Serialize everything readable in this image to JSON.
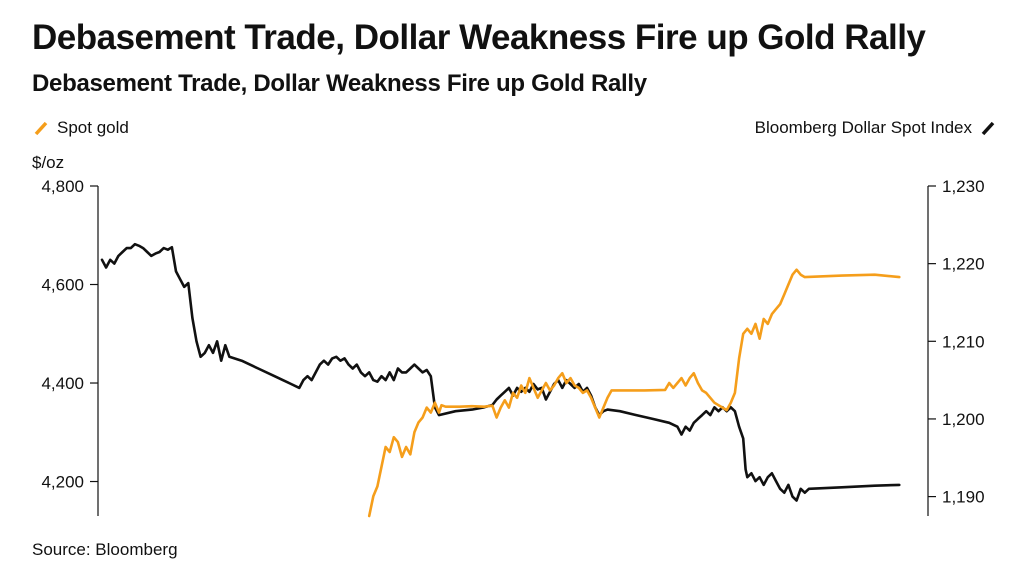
{
  "title": "Debasement Trade, Dollar Weakness Fire up Gold Rally",
  "subtitle": "Debasement Trade, Dollar Weakness Fire up Gold Rally",
  "source": "Source: Bloomberg",
  "chart_data": {
    "type": "line",
    "unit_label": "$/oz",
    "legend_placement": "top",
    "grid": false,
    "left_axis": {
      "range": [
        4130,
        4800
      ],
      "ticks": [
        4200,
        4400,
        4600,
        4800
      ],
      "tick_labels": [
        "4,200",
        "4,400",
        "4,600",
        "4,800"
      ]
    },
    "right_axis": {
      "range": [
        1187.5,
        1230
      ],
      "ticks": [
        1190,
        1200,
        1210,
        1220,
        1230
      ],
      "tick_labels": [
        "1,190",
        "1,200",
        "1,210",
        "1,220",
        "1,230"
      ]
    },
    "x_range": [
      0,
      100
    ],
    "series": [
      {
        "name": "Spot gold",
        "axis": "left",
        "color": "#F59E1B",
        "points": [
          [
            32.5,
            4130
          ],
          [
            33.0,
            4170
          ],
          [
            33.5,
            4190
          ],
          [
            34.0,
            4230
          ],
          [
            34.5,
            4270
          ],
          [
            35.0,
            4260
          ],
          [
            35.5,
            4290
          ],
          [
            36.0,
            4280
          ],
          [
            36.5,
            4250
          ],
          [
            37.0,
            4270
          ],
          [
            37.5,
            4255
          ],
          [
            38.0,
            4300
          ],
          [
            38.5,
            4320
          ],
          [
            39.0,
            4330
          ],
          [
            39.5,
            4350
          ],
          [
            40.0,
            4340
          ],
          [
            40.5,
            4360
          ],
          [
            41.0,
            4340
          ],
          [
            41.3,
            4355
          ],
          [
            41.8,
            4352
          ],
          [
            43.5,
            4352
          ],
          [
            45.0,
            4353
          ],
          [
            46.5,
            4352
          ],
          [
            47.5,
            4354
          ],
          [
            48.0,
            4330
          ],
          [
            48.5,
            4350
          ],
          [
            49.0,
            4365
          ],
          [
            49.5,
            4350
          ],
          [
            50.0,
            4380
          ],
          [
            50.5,
            4370
          ],
          [
            51.0,
            4395
          ],
          [
            51.5,
            4380
          ],
          [
            52.0,
            4410
          ],
          [
            52.5,
            4390
          ],
          [
            53.0,
            4370
          ],
          [
            53.5,
            4385
          ],
          [
            54.0,
            4400
          ],
          [
            54.5,
            4385
          ],
          [
            55.0,
            4395
          ],
          [
            55.5,
            4410
          ],
          [
            56.0,
            4420
          ],
          [
            56.5,
            4400
          ],
          [
            57.0,
            4410
          ],
          [
            57.5,
            4395
          ],
          [
            58.0,
            4390
          ],
          [
            58.5,
            4380
          ],
          [
            59.0,
            4385
          ],
          [
            59.5,
            4370
          ],
          [
            60.0,
            4350
          ],
          [
            60.5,
            4330
          ],
          [
            61.0,
            4350
          ],
          [
            61.5,
            4370
          ],
          [
            62.0,
            4385
          ],
          [
            63.5,
            4385
          ],
          [
            66.0,
            4385
          ],
          [
            68.5,
            4386
          ],
          [
            69.0,
            4400
          ],
          [
            69.5,
            4390
          ],
          [
            70.0,
            4400
          ],
          [
            70.5,
            4410
          ],
          [
            71.0,
            4395
          ],
          [
            71.5,
            4410
          ],
          [
            72.0,
            4420
          ],
          [
            72.5,
            4400
          ],
          [
            73.0,
            4385
          ],
          [
            73.5,
            4380
          ],
          [
            74.0,
            4370
          ],
          [
            74.5,
            4360
          ],
          [
            75.0,
            4355
          ],
          [
            75.5,
            4350
          ],
          [
            76.0,
            4345
          ],
          [
            76.5,
            4360
          ],
          [
            77.0,
            4380
          ],
          [
            77.5,
            4450
          ],
          [
            78.0,
            4500
          ],
          [
            78.5,
            4510
          ],
          [
            79.0,
            4500
          ],
          [
            79.5,
            4520
          ],
          [
            80.0,
            4490
          ],
          [
            80.5,
            4530
          ],
          [
            81.0,
            4520
          ],
          [
            81.5,
            4540
          ],
          [
            82.0,
            4550
          ],
          [
            82.5,
            4560
          ],
          [
            83.0,
            4580
          ],
          [
            83.5,
            4600
          ],
          [
            84.0,
            4620
          ],
          [
            84.5,
            4630
          ],
          [
            85.0,
            4620
          ],
          [
            85.5,
            4615
          ],
          [
            90.0,
            4618
          ],
          [
            94.0,
            4620
          ],
          [
            97.0,
            4615
          ]
        ]
      },
      {
        "name": "Bloomberg Dollar Spot Index",
        "axis": "right",
        "color": "#111111",
        "points": [
          [
            0.0,
            1220.5
          ],
          [
            0.5,
            1219.5
          ],
          [
            1.0,
            1220.5
          ],
          [
            1.5,
            1220.0
          ],
          [
            2.0,
            1221.0
          ],
          [
            2.5,
            1221.5
          ],
          [
            3.0,
            1222.0
          ],
          [
            3.5,
            1222.0
          ],
          [
            4.0,
            1222.5
          ],
          [
            4.5,
            1222.3
          ],
          [
            5.0,
            1222.0
          ],
          [
            5.5,
            1221.5
          ],
          [
            6.0,
            1221.0
          ],
          [
            6.5,
            1221.3
          ],
          [
            7.0,
            1221.5
          ],
          [
            7.5,
            1222.0
          ],
          [
            8.0,
            1221.8
          ],
          [
            8.5,
            1222.1
          ],
          [
            9.0,
            1219.0
          ],
          [
            9.5,
            1218.0
          ],
          [
            10.0,
            1217.0
          ],
          [
            10.5,
            1217.5
          ],
          [
            11.0,
            1213.0
          ],
          [
            11.5,
            1210.0
          ],
          [
            12.0,
            1208.0
          ],
          [
            12.5,
            1208.5
          ],
          [
            13.0,
            1209.5
          ],
          [
            13.5,
            1208.5
          ],
          [
            14.0,
            1210.0
          ],
          [
            14.5,
            1207.5
          ],
          [
            15.0,
            1209.5
          ],
          [
            15.5,
            1208.0
          ],
          [
            17.0,
            1207.5
          ],
          [
            19.0,
            1206.5
          ],
          [
            21.0,
            1205.5
          ],
          [
            23.0,
            1204.5
          ],
          [
            24.0,
            1204.0
          ],
          [
            24.5,
            1205.0
          ],
          [
            25.0,
            1205.5
          ],
          [
            25.5,
            1205.0
          ],
          [
            26.0,
            1206.0
          ],
          [
            26.5,
            1207.0
          ],
          [
            27.0,
            1207.5
          ],
          [
            27.5,
            1207.0
          ],
          [
            28.0,
            1207.8
          ],
          [
            28.5,
            1208.0
          ],
          [
            29.0,
            1207.5
          ],
          [
            29.5,
            1207.8
          ],
          [
            30.0,
            1207.0
          ],
          [
            30.5,
            1206.5
          ],
          [
            31.0,
            1207.0
          ],
          [
            31.5,
            1206.0
          ],
          [
            32.0,
            1205.5
          ],
          [
            32.5,
            1206.0
          ],
          [
            33.0,
            1205.0
          ],
          [
            33.5,
            1204.8
          ],
          [
            34.0,
            1205.5
          ],
          [
            34.5,
            1205.0
          ],
          [
            35.0,
            1206.0
          ],
          [
            35.5,
            1205.0
          ],
          [
            36.0,
            1206.5
          ],
          [
            36.5,
            1206.0
          ],
          [
            37.0,
            1206.0
          ],
          [
            37.5,
            1206.5
          ],
          [
            38.0,
            1207.0
          ],
          [
            38.5,
            1206.5
          ],
          [
            39.0,
            1206.0
          ],
          [
            39.5,
            1206.3
          ],
          [
            40.0,
            1205.5
          ],
          [
            40.5,
            1201.5
          ],
          [
            41.0,
            1200.5
          ],
          [
            43.0,
            1201.0
          ],
          [
            45.0,
            1201.2
          ],
          [
            46.5,
            1201.5
          ],
          [
            47.5,
            1201.8
          ],
          [
            48.0,
            1202.5
          ],
          [
            48.5,
            1203.0
          ],
          [
            49.0,
            1203.5
          ],
          [
            49.5,
            1204.0
          ],
          [
            50.0,
            1203.0
          ],
          [
            50.5,
            1204.0
          ],
          [
            51.0,
            1203.5
          ],
          [
            51.5,
            1204.0
          ],
          [
            52.0,
            1203.5
          ],
          [
            52.5,
            1204.5
          ],
          [
            53.0,
            1203.8
          ],
          [
            53.5,
            1204.0
          ],
          [
            54.0,
            1202.5
          ],
          [
            54.5,
            1203.5
          ],
          [
            55.0,
            1204.5
          ],
          [
            55.5,
            1205.0
          ],
          [
            56.0,
            1204.0
          ],
          [
            56.5,
            1205.0
          ],
          [
            57.0,
            1204.5
          ],
          [
            57.5,
            1204.0
          ],
          [
            58.0,
            1204.5
          ],
          [
            58.5,
            1203.5
          ],
          [
            59.0,
            1204.0
          ],
          [
            59.5,
            1203.0
          ],
          [
            60.0,
            1201.5
          ],
          [
            60.5,
            1200.5
          ],
          [
            61.0,
            1201.0
          ],
          [
            61.5,
            1201.2
          ],
          [
            63.0,
            1201.0
          ],
          [
            65.0,
            1200.5
          ],
          [
            67.0,
            1200.0
          ],
          [
            69.0,
            1199.5
          ],
          [
            70.0,
            1199.0
          ],
          [
            70.5,
            1198.0
          ],
          [
            71.0,
            1199.0
          ],
          [
            71.5,
            1198.5
          ],
          [
            72.0,
            1199.5
          ],
          [
            72.5,
            1200.0
          ],
          [
            73.0,
            1200.5
          ],
          [
            73.5,
            1201.0
          ],
          [
            74.0,
            1200.5
          ],
          [
            74.5,
            1201.5
          ],
          [
            75.0,
            1201.0
          ],
          [
            75.5,
            1201.5
          ],
          [
            76.0,
            1201.0
          ],
          [
            76.5,
            1201.5
          ],
          [
            77.0,
            1201.0
          ],
          [
            77.5,
            1199.0
          ],
          [
            78.0,
            1197.5
          ],
          [
            78.3,
            1193.5
          ],
          [
            78.5,
            1192.5
          ],
          [
            79.0,
            1193.0
          ],
          [
            79.5,
            1192.0
          ],
          [
            80.0,
            1192.5
          ],
          [
            80.5,
            1191.5
          ],
          [
            81.0,
            1192.5
          ],
          [
            81.5,
            1193.0
          ],
          [
            82.0,
            1192.0
          ],
          [
            82.5,
            1191.0
          ],
          [
            83.0,
            1190.5
          ],
          [
            83.5,
            1191.5
          ],
          [
            84.0,
            1190.0
          ],
          [
            84.5,
            1189.5
          ],
          [
            85.0,
            1191.0
          ],
          [
            85.5,
            1190.5
          ],
          [
            86.0,
            1191.0
          ],
          [
            90.0,
            1191.2
          ],
          [
            94.0,
            1191.4
          ],
          [
            97.0,
            1191.5
          ]
        ]
      }
    ]
  }
}
